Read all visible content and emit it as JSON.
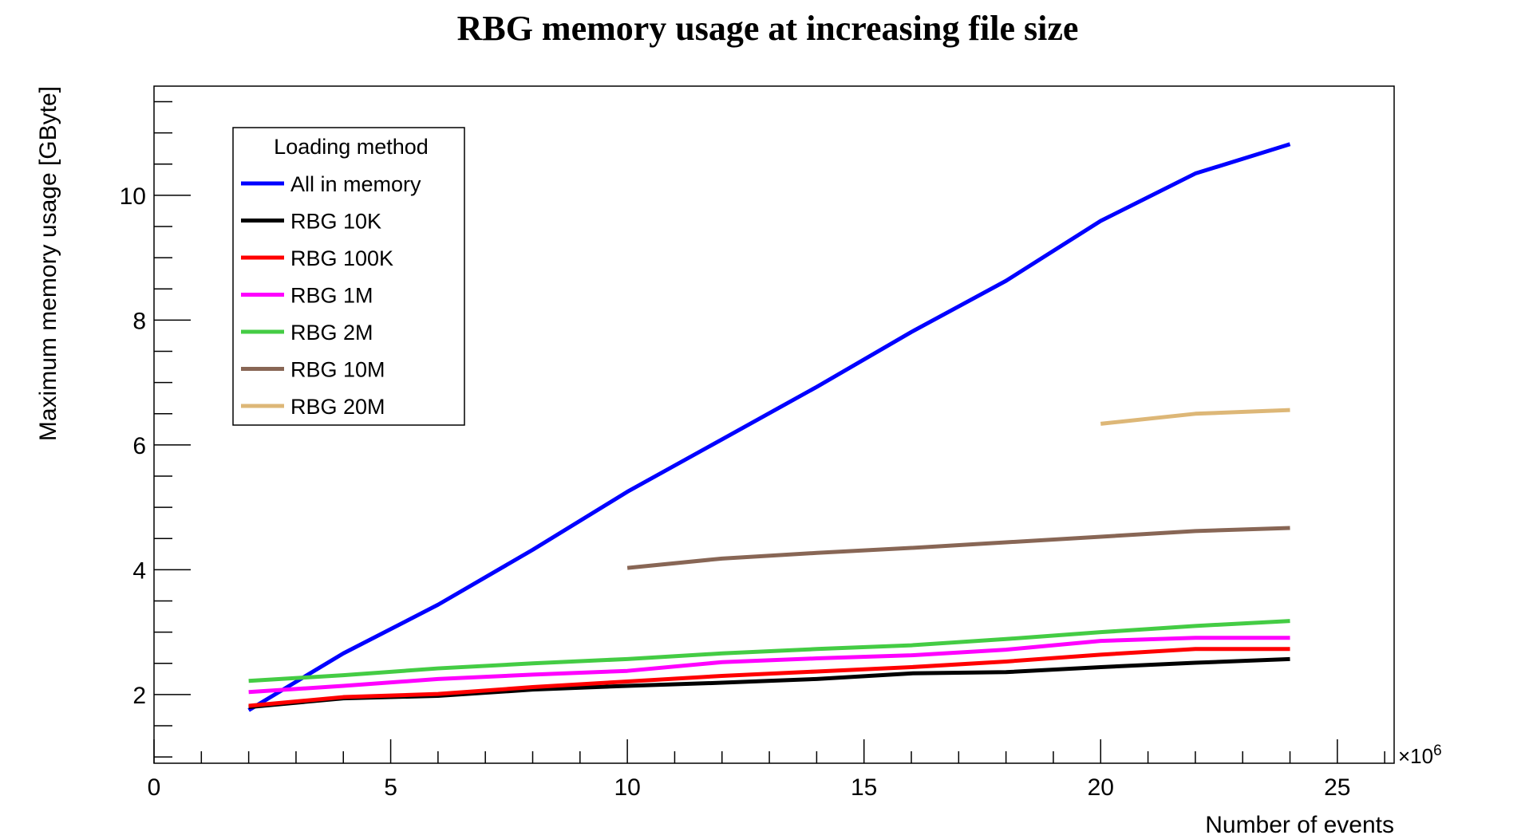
{
  "chart_data": {
    "type": "line",
    "title": "RBG memory usage at increasing file size",
    "xlabel": "Number of events",
    "ylabel": "Maximum memory usage [GByte]",
    "x_multiplier_label": "×10",
    "x_multiplier_exp": "6",
    "xlim": [
      0,
      26.2
    ],
    "ylim": [
      0.9,
      11.75
    ],
    "x_ticks": [
      "0",
      "5",
      "10",
      "15",
      "20",
      "25"
    ],
    "y_ticks": [
      "2",
      "4",
      "6",
      "8",
      "10"
    ],
    "legend_title": "Loading method",
    "legend_position": "top-left",
    "grid": false,
    "series": [
      {
        "name": "All in memory",
        "color": "#0000ff",
        "x": [
          2,
          4,
          6,
          8,
          10,
          12,
          14,
          16,
          18,
          20,
          22,
          24
        ],
        "y": [
          1.75,
          2.66,
          3.44,
          4.32,
          5.25,
          6.09,
          6.93,
          7.81,
          8.63,
          9.59,
          10.35,
          10.82
        ]
      },
      {
        "name": "RBG 10K",
        "color": "#000000",
        "x": [
          2,
          4,
          6,
          8,
          10,
          12,
          14,
          16,
          18,
          20,
          22,
          24
        ],
        "y": [
          1.8,
          1.94,
          1.98,
          2.08,
          2.14,
          2.19,
          2.25,
          2.34,
          2.36,
          2.44,
          2.51,
          2.57
        ]
      },
      {
        "name": "RBG 100K",
        "color": "#ff0000",
        "x": [
          2,
          4,
          6,
          8,
          10,
          12,
          14,
          16,
          18,
          20,
          22,
          24
        ],
        "y": [
          1.82,
          1.96,
          2.01,
          2.12,
          2.21,
          2.3,
          2.37,
          2.44,
          2.53,
          2.64,
          2.73,
          2.73
        ]
      },
      {
        "name": "RBG 1M",
        "color": "#ff00ff",
        "x": [
          2,
          4,
          6,
          8,
          10,
          12,
          14,
          16,
          18,
          20,
          22,
          24
        ],
        "y": [
          2.04,
          2.14,
          2.25,
          2.32,
          2.38,
          2.52,
          2.58,
          2.63,
          2.72,
          2.86,
          2.91,
          2.91
        ]
      },
      {
        "name": "RBG 2M",
        "color": "#44cc44",
        "x": [
          2,
          4,
          6,
          8,
          10,
          12,
          14,
          16,
          18,
          20,
          22,
          24
        ],
        "y": [
          2.22,
          2.31,
          2.42,
          2.5,
          2.57,
          2.66,
          2.73,
          2.79,
          2.89,
          3.0,
          3.1,
          3.18
        ]
      },
      {
        "name": "RBG 10M",
        "color": "#886655",
        "x": [
          10,
          12,
          14,
          16,
          18,
          20,
          22,
          24
        ],
        "y": [
          4.03,
          4.18,
          4.27,
          4.35,
          4.44,
          4.53,
          4.62,
          4.67
        ]
      },
      {
        "name": "RBG 20M",
        "color": "#ddb777",
        "x": [
          20,
          22,
          24
        ],
        "y": [
          6.34,
          6.5,
          6.56
        ]
      }
    ]
  }
}
